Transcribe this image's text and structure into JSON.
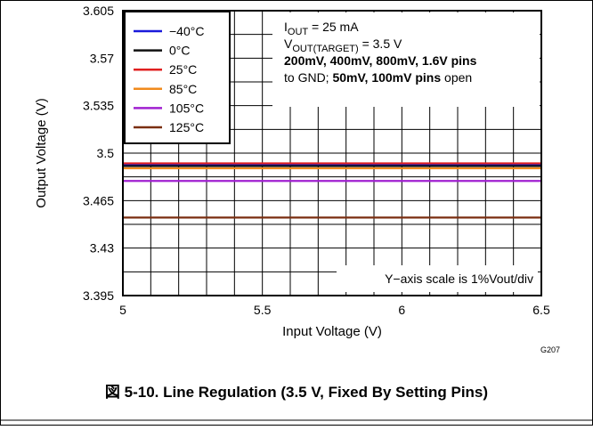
{
  "chart_data": {
    "type": "line",
    "caption": "図 5-10. Line Regulation (3.5 V, Fixed By Setting Pins)",
    "xlabel": "Input Voltage (V)",
    "ylabel": "Output Voltage (V)",
    "xlim": [
      5,
      6.5
    ],
    "ylim": [
      3.395,
      3.605
    ],
    "x_ticks": [
      "5",
      "5.5",
      "6",
      "6.5"
    ],
    "y_ticks": [
      "3.605",
      "3.57",
      "3.535",
      "3.5",
      "3.465",
      "3.43",
      "3.395"
    ],
    "x_minor_step": 0.1,
    "y_minor_step": 0.0175,
    "grid": true,
    "legend_position": "top-left",
    "annotation_lines": [
      [
        {
          "t": "I",
          "s": "normal"
        },
        {
          "t": "OUT",
          "s": "sub"
        },
        {
          "t": " = 25 mA",
          "s": "normal"
        }
      ],
      [
        {
          "t": "V",
          "s": "normal"
        },
        {
          "t": "OUT(TARGET)",
          "s": "sub"
        },
        {
          "t": " = 3.5 V",
          "s": "normal"
        }
      ],
      [
        {
          "t": "200mV, 400mV, 800mV, 1.6V pins",
          "s": "bold"
        }
      ],
      [
        {
          "t": "to GND;  ",
          "s": "normal"
        },
        {
          "t": "50mV, 100mV pins",
          "s": "bold"
        },
        {
          "t": "  open",
          "s": "normal"
        }
      ]
    ],
    "scale_note": "Y−axis scale is 1%Vout/div",
    "graph_code": "G207",
    "series": [
      {
        "name": "−40°C",
        "color": "#1a1adb",
        "x": [
          5,
          6.5
        ],
        "y": [
          3.4915,
          3.4915
        ]
      },
      {
        "name": "0°C",
        "color": "#111111",
        "x": [
          5,
          6.5
        ],
        "y": [
          3.4905,
          3.4905
        ]
      },
      {
        "name": "25°C",
        "color": "#e02020",
        "x": [
          5,
          6.5
        ],
        "y": [
          3.4925,
          3.4925
        ]
      },
      {
        "name": "85°C",
        "color": "#f08a1c",
        "x": [
          5,
          6.5
        ],
        "y": [
          3.4888,
          3.4888
        ]
      },
      {
        "name": "105°C",
        "color": "#a020d0",
        "x": [
          5,
          6.5
        ],
        "y": [
          3.4795,
          3.4795
        ]
      },
      {
        "name": "125°C",
        "color": "#7a2e10",
        "x": [
          5,
          6.5
        ],
        "y": [
          3.4525,
          3.4525
        ]
      }
    ]
  }
}
